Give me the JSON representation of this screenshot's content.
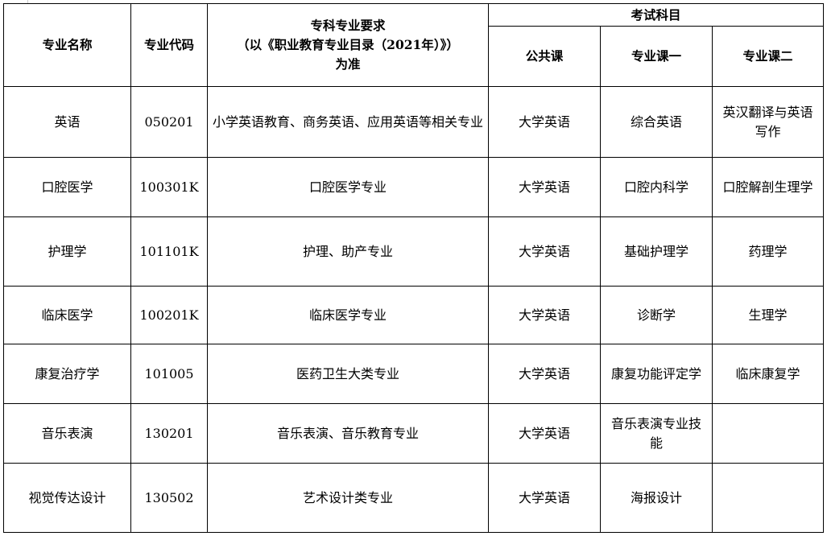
{
  "header": {
    "major_name": "专业名称",
    "major_code": "专业代码",
    "requirement_line1": "专科专业要求",
    "requirement_line2": "（以《职业教育专业目录（2021年）》）",
    "requirement_line3": "为准",
    "exam_subjects": "考试科目",
    "public_course": "公共课",
    "course_one": "专业课一",
    "course_two": "专业课二"
  },
  "rows": [
    {
      "name": "英语",
      "code": "050201",
      "requirement": "小学英语教育、商务英语、应用英语等相关专业",
      "public": "大学英语",
      "course1": "综合英语",
      "course2": "英汉翻译与英语写作"
    },
    {
      "name": "口腔医学",
      "code": "100301K",
      "requirement": "口腔医学专业",
      "public": "大学英语",
      "course1": "口腔内科学",
      "course2": "口腔解剖生理学"
    },
    {
      "name": "护理学",
      "code": "101101K",
      "requirement": "护理、助产专业",
      "public": "大学英语",
      "course1": "基础护理学",
      "course2": "药理学"
    },
    {
      "name": "临床医学",
      "code": "100201K",
      "requirement": "临床医学专业",
      "public": "大学英语",
      "course1": "诊断学",
      "course2": "生理学"
    },
    {
      "name": "康复治疗学",
      "code": "101005",
      "requirement": "医药卫生大类专业",
      "public": "大学英语",
      "course1": "康复功能评定学",
      "course2": "临床康复学"
    },
    {
      "name": "音乐表演",
      "code": "130201",
      "requirement": "音乐表演、音乐教育专业",
      "public": "大学英语",
      "course1": "音乐表演专业技能",
      "course2": ""
    },
    {
      "name": "视觉传达设计",
      "code": "130502",
      "requirement": "艺术设计类专业",
      "public": "大学英语",
      "course1": "海报设计",
      "course2": ""
    }
  ]
}
